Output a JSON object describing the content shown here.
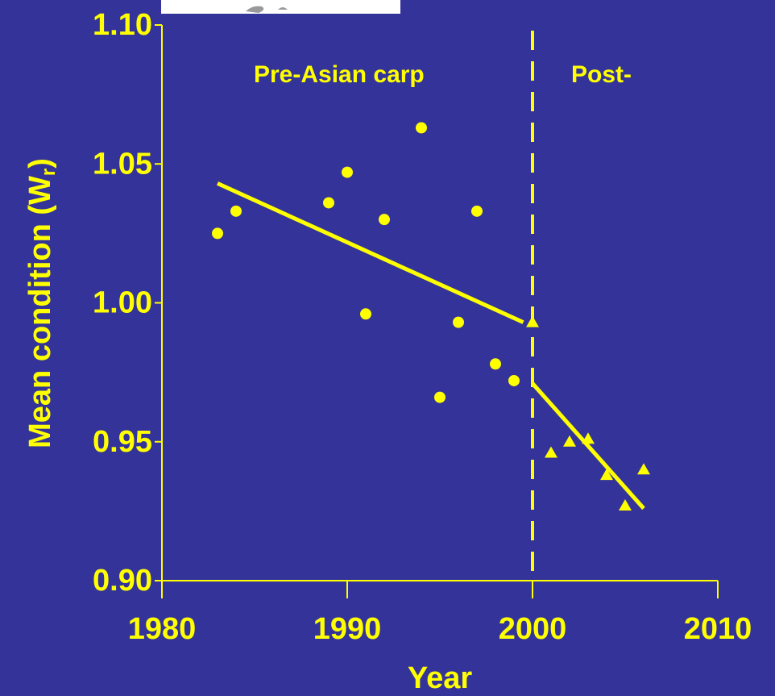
{
  "chart_data": {
    "type": "scatter",
    "x_label": "Year",
    "y_label": {
      "text": "Mean condition (W",
      "subscript": "r",
      "suffix": ")"
    },
    "annotations": [
      "Pre-Asian carp",
      "Post-"
    ],
    "xlim": [
      1980,
      2010
    ],
    "xticks": [
      1980,
      1990,
      2000,
      2010
    ],
    "ylim": [
      0.9,
      1.1
    ],
    "yticks": [
      {
        "value": 0.9,
        "label": "0.90"
      },
      0.95,
      {
        "value": 1.0,
        "label": "1.00"
      },
      1.05,
      {
        "value": 1.1,
        "label": "1.10"
      }
    ],
    "color": "#ffff00",
    "divider_x": 2000,
    "series": [
      {
        "marker": "circle",
        "x": [
          1983,
          1984,
          1989,
          1990,
          1991,
          1992,
          1994,
          1995,
          1996,
          1997,
          1998,
          1999
        ],
        "values": [
          1.025,
          1.033,
          1.036,
          1.047,
          0.996,
          1.03,
          1.063,
          0.966,
          0.993,
          1.033,
          0.978,
          0.972
        ]
      },
      {
        "marker": "triangle",
        "x": [
          2000,
          2001,
          2002,
          2003,
          2004,
          2005,
          2006
        ],
        "values": [
          0.993,
          0.946,
          0.95,
          0.951,
          0.938,
          0.927,
          0.94
        ]
      }
    ],
    "trend_lines": [
      {
        "x": [
          1983,
          1999.5
        ],
        "values": [
          1.043,
          0.993
        ]
      },
      {
        "x": [
          2000,
          2006
        ],
        "values": [
          0.971,
          0.926
        ]
      }
    ]
  }
}
